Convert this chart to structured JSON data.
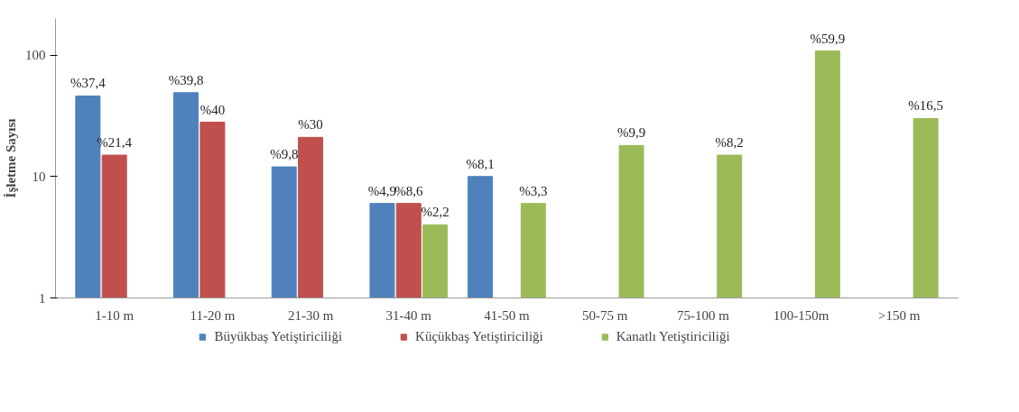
{
  "chart_data": {
    "type": "bar",
    "ylabel": "İşletme Sayısı",
    "categories": [
      "1-10 m",
      "11-20 m",
      "21-30 m",
      "31-40 m",
      "41-50 m",
      "50-75 m",
      "75-100 m",
      "100-150m",
      ">150 m"
    ],
    "series": [
      {
        "name": "Büyükbaş Yetiştiriciliği",
        "color": "#4f81bd",
        "values": [
          46,
          49,
          12,
          6,
          10,
          null,
          null,
          null,
          null
        ]
      },
      {
        "name": "Küçükbaş Yetiştiriciliği",
        "color": "#c0504d",
        "values": [
          15,
          28,
          21,
          6,
          null,
          null,
          null,
          null,
          null
        ]
      },
      {
        "name": "Kanatlı Yetiştiriciliği",
        "color": "#9bbb59",
        "values": [
          null,
          null,
          null,
          4,
          6,
          18,
          15,
          108,
          30
        ]
      }
    ],
    "annotations": [
      "%37,4",
      "%39,8",
      "%9,8",
      "%4,9",
      "%8,1",
      "%21,4",
      "%40",
      "%30",
      "%8,6",
      "%2,2",
      "%3,3",
      "%9,9",
      "%8,2",
      "%59,9",
      "%16,5"
    ],
    "log": true,
    "ylim": [
      1,
      200
    ],
    "yticks": [
      1,
      10,
      100
    ],
    "grid": false,
    "legend": "bottom"
  }
}
